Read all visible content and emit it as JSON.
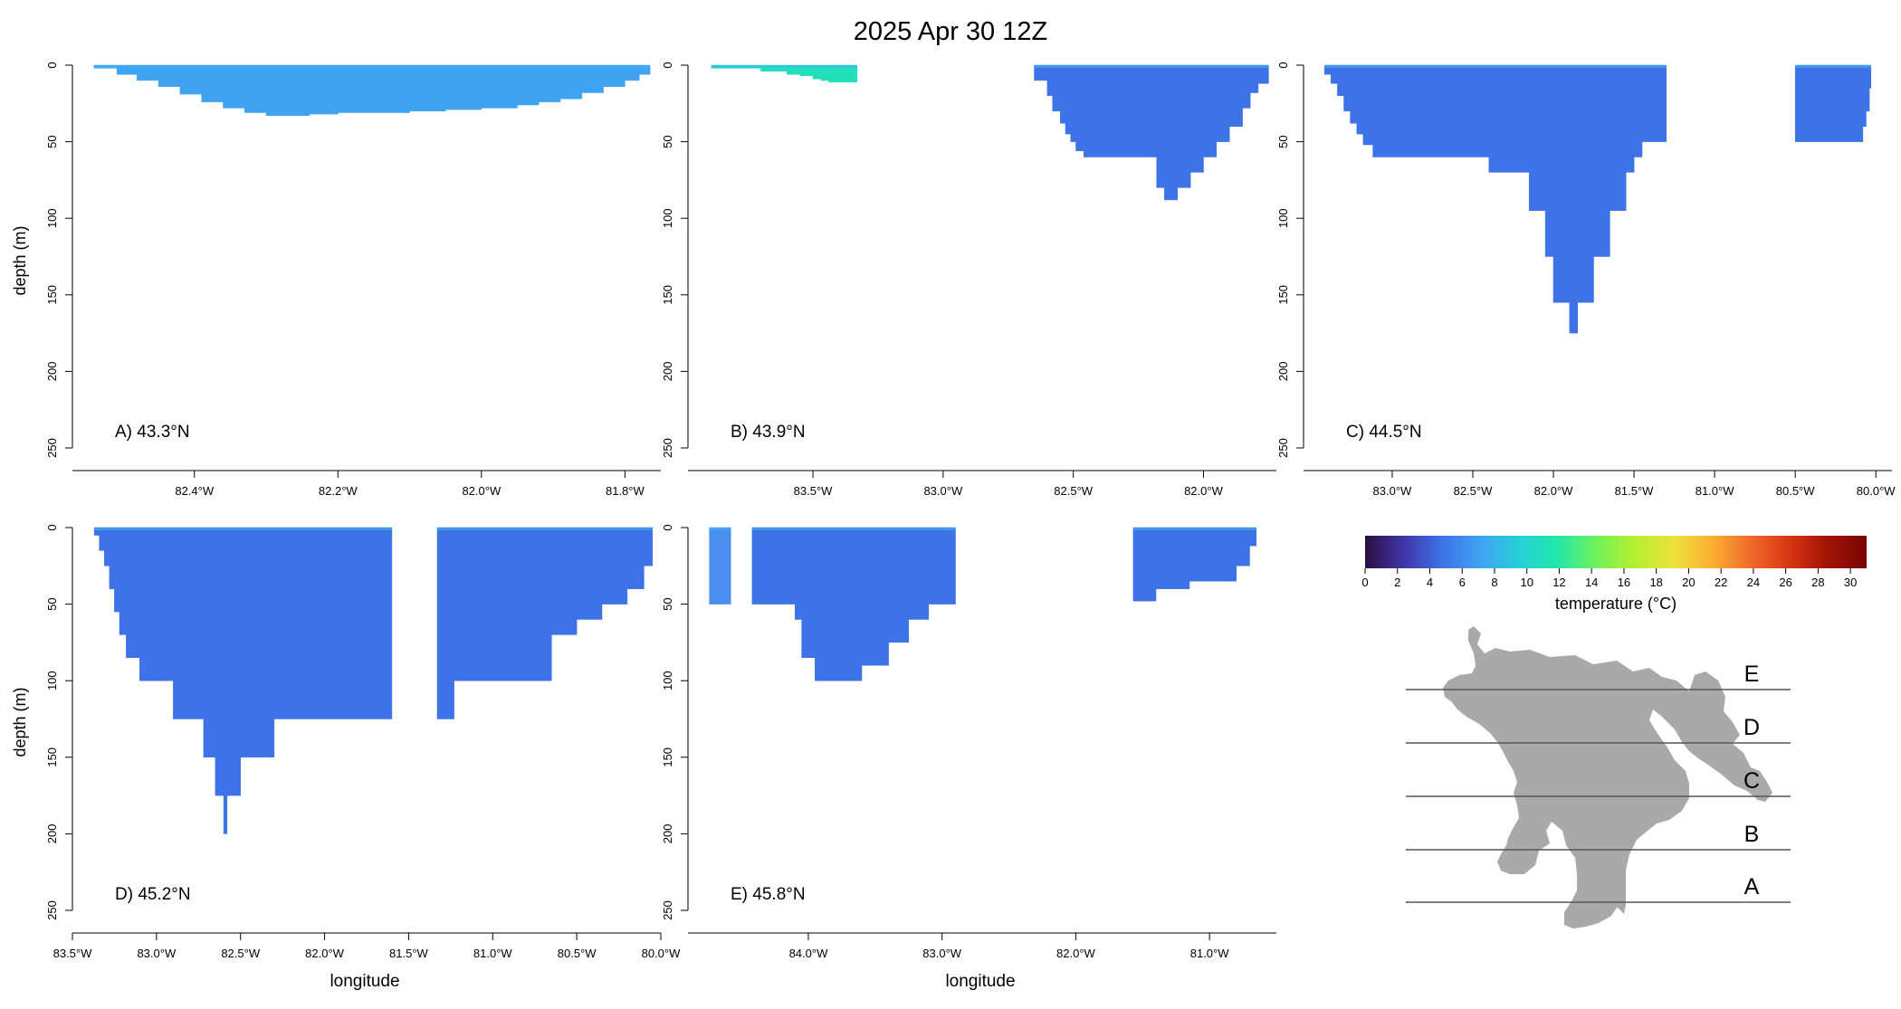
{
  "title": "2025 Apr 30 12Z",
  "shared": {
    "ylabel": "depth (m)",
    "xlabel": "longitude",
    "ylim": [
      0,
      250
    ],
    "yticks": [
      "0",
      "50",
      "100",
      "150",
      "200",
      "250"
    ]
  },
  "chart_data": [
    {
      "type": "heatmap",
      "panel": "A",
      "label": "A) 43.3°N",
      "xlim": [
        -82.57,
        -81.75
      ],
      "xticks": [
        {
          "value": -82.4,
          "label": "82.4°W"
        },
        {
          "value": -82.2,
          "label": "82.2°W"
        },
        {
          "value": -82.0,
          "label": "82.0°W"
        },
        {
          "value": -81.8,
          "label": "81.8°W"
        }
      ],
      "color": "#3fa3f3",
      "segments": [
        {
          "x": [
            -82.54,
            -82.508,
            -82.48,
            -82.45,
            -82.42,
            -82.39,
            -82.36,
            -82.33,
            -82.3,
            -82.27,
            -82.24,
            -82.2,
            -82.15,
            -82.1,
            -82.05,
            -82.0,
            -81.95,
            -81.92,
            -81.89,
            -81.86,
            -81.83,
            -81.8,
            -81.78,
            -81.765
          ],
          "d": [
            2,
            6,
            10,
            14,
            19,
            24,
            28,
            31,
            33,
            33,
            32,
            31,
            31,
            30,
            29,
            28,
            26,
            24,
            22,
            18,
            14,
            10,
            6,
            3
          ]
        }
      ]
    },
    {
      "type": "heatmap",
      "panel": "B",
      "label": "B) 43.9°N",
      "xlim": [
        -83.98,
        -81.72
      ],
      "xticks": [
        {
          "value": -83.5,
          "label": "83.5°W"
        },
        {
          "value": -83.0,
          "label": "83.0°W"
        },
        {
          "value": -82.5,
          "label": "82.5°W"
        },
        {
          "value": -82.0,
          "label": "82.0°W"
        }
      ],
      "color": "#3d73e6",
      "segments": [
        {
          "x": [
            -83.89,
            -83.7,
            -83.6,
            -83.55,
            -83.5,
            -83.47,
            -83.44,
            -83.33
          ],
          "d": [
            2,
            4,
            6,
            7,
            9,
            10,
            11,
            11
          ],
          "color": "#22dfbb"
        },
        {
          "x": [
            -82.65,
            -82.6,
            -82.58,
            -82.55,
            -82.53,
            -82.51,
            -82.49,
            -82.46,
            -82.42,
            -82.3,
            -82.2,
            -82.18,
            -82.15,
            -82.12,
            -82.1,
            -82.05,
            -82.0,
            -81.95,
            -81.9,
            -81.85,
            -81.82,
            -81.79,
            -81.75
          ],
          "d": [
            10,
            20,
            30,
            38,
            45,
            50,
            56,
            60,
            60,
            60,
            60,
            80,
            88,
            88,
            80,
            70,
            60,
            50,
            40,
            28,
            18,
            12,
            6
          ]
        }
      ]
    },
    {
      "type": "heatmap",
      "panel": "C",
      "label": "C) 44.5°N",
      "xlim": [
        -83.55,
        -79.9
      ],
      "xticks": [
        {
          "value": -83.0,
          "label": "83.0°W"
        },
        {
          "value": -82.5,
          "label": "82.5°W"
        },
        {
          "value": -82.0,
          "label": "82.0°W"
        },
        {
          "value": -81.5,
          "label": "81.5°W"
        },
        {
          "value": -81.0,
          "label": "81.0°W"
        },
        {
          "value": -80.5,
          "label": "80.5°W"
        },
        {
          "value": -80.0,
          "label": "80.0°W"
        }
      ],
      "color": "#3d73e6",
      "segments": [
        {
          "x": [
            -83.42,
            -83.38,
            -83.34,
            -83.3,
            -83.26,
            -83.22,
            -83.18,
            -83.12,
            -82.9,
            -82.7,
            -82.4,
            -82.2,
            -82.15,
            -82.05,
            -82.0,
            -81.9,
            -81.85,
            -81.75,
            -81.65,
            -81.55,
            -81.5,
            -81.45,
            -81.4,
            -81.3
          ],
          "d": [
            6,
            12,
            20,
            30,
            38,
            45,
            52,
            60,
            60,
            60,
            70,
            70,
            95,
            125,
            155,
            175,
            155,
            125,
            95,
            70,
            60,
            50,
            50,
            50
          ]
        },
        {
          "x": [
            -80.5,
            -80.1,
            -80.08,
            -80.06,
            -80.04,
            -80.03
          ],
          "d": [
            50,
            50,
            40,
            30,
            15,
            5
          ]
        }
      ]
    },
    {
      "type": "heatmap",
      "panel": "D",
      "label": "D) 45.2°N",
      "xlim": [
        -83.5,
        -80.0
      ],
      "xticks": [
        {
          "value": -83.5,
          "label": "83.5°W"
        },
        {
          "value": -83.0,
          "label": "83.0°W"
        },
        {
          "value": -82.5,
          "label": "82.5°W"
        },
        {
          "value": -82.0,
          "label": "82.0°W"
        },
        {
          "value": -81.5,
          "label": "81.5°W"
        },
        {
          "value": -81.0,
          "label": "81.0°W"
        },
        {
          "value": -80.5,
          "label": "80.5°W"
        },
        {
          "value": -80.0,
          "label": "80.0°W"
        }
      ],
      "color": "#3d73e6",
      "segments": [
        {
          "x": [
            -83.37,
            -83.34,
            -83.31,
            -83.28,
            -83.25,
            -83.22,
            -83.18,
            -83.1,
            -82.9,
            -82.72,
            -82.65,
            -82.62,
            -82.6,
            -82.58,
            -82.55,
            -82.5,
            -82.3,
            -81.6
          ],
          "d": [
            5,
            15,
            25,
            40,
            55,
            70,
            85,
            100,
            125,
            150,
            175,
            175,
            200,
            175,
            175,
            150,
            125,
            125
          ]
        },
        {
          "x": [
            -81.33,
            -81.23,
            -81.0,
            -80.75,
            -80.65,
            -80.5,
            -80.35,
            -80.2,
            -80.1,
            -80.05
          ],
          "d": [
            125,
            100,
            100,
            100,
            70,
            60,
            50,
            40,
            25,
            10
          ]
        }
      ]
    },
    {
      "type": "heatmap",
      "panel": "E",
      "label": "E) 45.8°N",
      "xlim": [
        -84.9,
        -80.5
      ],
      "xticks": [
        {
          "value": -84.0,
          "label": "84.0°W"
        },
        {
          "value": -83.0,
          "label": "83.0°W"
        },
        {
          "value": -82.0,
          "label": "82.0°W"
        },
        {
          "value": -81.0,
          "label": "81.0°W"
        }
      ],
      "color": "#3d73e6",
      "segments": [
        {
          "x": [
            -84.74,
            -84.58
          ],
          "d": [
            50,
            50
          ],
          "color": "#4a8ef0"
        },
        {
          "x": [
            -84.42,
            -84.2,
            -84.1,
            -84.05,
            -83.95,
            -83.8,
            -83.6,
            -83.4,
            -83.25,
            -83.1,
            -82.9
          ],
          "d": [
            50,
            50,
            60,
            85,
            100,
            100,
            90,
            75,
            60,
            50,
            50
          ]
        },
        {
          "x": [
            -81.57,
            -81.4,
            -81.15,
            -80.9,
            -80.8,
            -80.7,
            -80.65
          ],
          "d": [
            48,
            40,
            35,
            35,
            25,
            12,
            4
          ]
        }
      ]
    }
  ],
  "colorbar": {
    "label": "temperature (°C)",
    "range": [
      0,
      31
    ],
    "ticks": [
      "0",
      "2",
      "4",
      "6",
      "8",
      "10",
      "12",
      "14",
      "16",
      "18",
      "20",
      "22",
      "24",
      "26",
      "28",
      "30"
    ],
    "colors": [
      "#2b0f40",
      "#4135a8",
      "#3d73e6",
      "#3fa3f3",
      "#25d0d6",
      "#22e7a8",
      "#6ff25a",
      "#b6ef2e",
      "#ece33a",
      "#fab031",
      "#f2692a",
      "#d63612",
      "#a21306",
      "#7a0403"
    ]
  },
  "map": {
    "lake_color": "#a9a9a9",
    "section_labels": [
      "E",
      "D",
      "C",
      "B",
      "A"
    ]
  }
}
